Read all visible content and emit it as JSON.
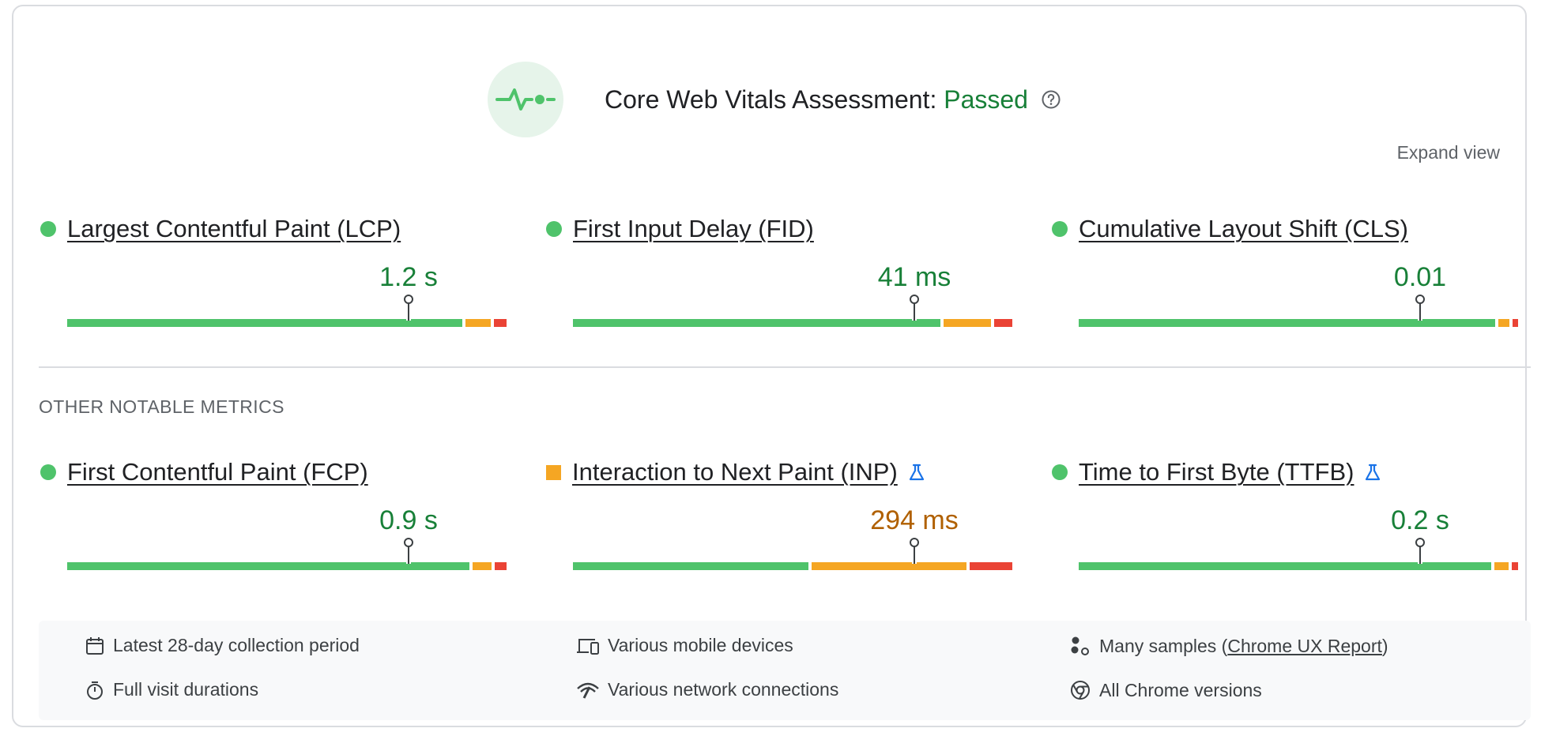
{
  "header": {
    "title_prefix": "Core Web Vitals Assessment: ",
    "status": "Passed",
    "status_color": "#188038",
    "icon": "pulse-icon",
    "help_icon": "question-circle-icon"
  },
  "expand_view": "Expand view",
  "core_metrics": [
    {
      "name": "Largest Contentful Paint (LCP)",
      "value": "1.2 s",
      "rating": "good",
      "indicator": "green-dot"
    },
    {
      "name": "First Input Delay (FID)",
      "value": "41 ms",
      "rating": "good",
      "indicator": "green-dot"
    },
    {
      "name": "Cumulative Layout Shift (CLS)",
      "value": "0.01",
      "rating": "good",
      "indicator": "green-dot"
    }
  ],
  "other_section_label": "OTHER NOTABLE METRICS",
  "other_metrics": [
    {
      "name": "First Contentful Paint (FCP)",
      "value": "0.9 s",
      "rating": "good",
      "indicator": "green-dot",
      "experimental": false
    },
    {
      "name": "Interaction to Next Paint (INP)",
      "value": "294 ms",
      "rating": "needs-improvement",
      "indicator": "orange-square",
      "experimental": true
    },
    {
      "name": "Time to First Byte (TTFB)",
      "value": "0.2 s",
      "rating": "good",
      "indicator": "green-dot",
      "experimental": true
    }
  ],
  "footer": {
    "collection_period": "Latest 28-day collection period",
    "devices": "Various mobile devices",
    "samples_prefix": "Many samples (",
    "samples_link": "Chrome UX Report",
    "samples_suffix": ")",
    "durations": "Full visit durations",
    "network": "Various network connections",
    "chrome_versions": "All Chrome versions"
  },
  "colors": {
    "good": "#4fc36b",
    "needs_improvement": "#f5a623",
    "poor": "#ea4335",
    "good_text": "#188038",
    "avg_text": "#b06000"
  }
}
